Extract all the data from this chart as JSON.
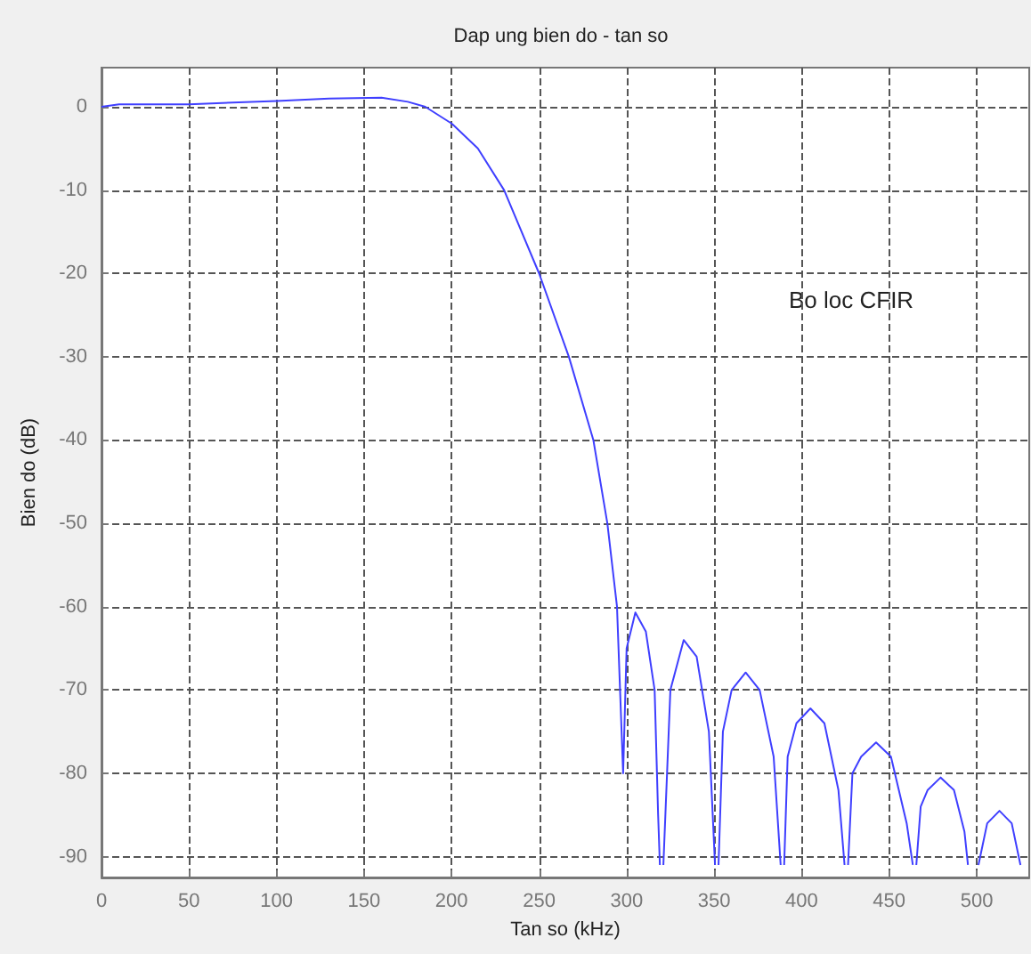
{
  "chart_data": {
    "type": "line",
    "title": "Dap ung bien do - tan so",
    "xlabel": "Tan so (kHz)",
    "ylabel": "Bien do (dB)",
    "annotations": [
      "Bo loc CFIR"
    ],
    "xlim": [
      0,
      530
    ],
    "ylim": [
      -92.5,
      4.7
    ],
    "xticks": [
      0,
      50,
      100,
      150,
      200,
      250,
      300,
      350,
      400,
      450,
      500
    ],
    "yticks": [
      0,
      -10,
      -20,
      -30,
      -40,
      -50,
      -60,
      -70,
      -80,
      -90
    ],
    "grid": true,
    "line_style": "solid",
    "series": [
      {
        "color": "#3f3fff",
        "x": [
          0,
          10,
          50,
          100,
          130,
          160,
          175,
          185,
          200,
          215,
          230,
          250,
          267,
          281,
          289,
          294.5,
          298,
          298.5,
          300,
          305,
          311,
          316,
          318,
          319,
          320,
          321,
          325,
          332.6,
          340,
          347,
          350.5,
          351.5,
          352.5,
          355,
          360,
          368,
          376,
          384,
          388,
          389,
          390,
          392,
          397,
          405,
          413,
          421,
          424.5,
          425.5,
          426.5,
          429,
          434,
          442.5,
          451,
          460,
          463.5,
          464.5,
          465.5,
          468,
          472,
          479.4,
          487,
          493,
          495,
          498,
          501,
          506,
          513,
          520,
          525
        ],
        "values": [
          0,
          0.3,
          0.3,
          0.7,
          1,
          1.1,
          0.6,
          0,
          -2,
          -5,
          -10,
          -20,
          -30,
          -40,
          -50,
          -60,
          -80,
          -80,
          -65,
          -60.7,
          -63,
          -70,
          -85,
          -91,
          null,
          -91,
          -70,
          -64,
          -66,
          -75,
          -91,
          null,
          -91,
          -75,
          -70,
          -67.9,
          -70,
          -78,
          -91,
          null,
          -91,
          -78,
          -74,
          -72.2,
          -74,
          -82,
          -91,
          null,
          -91,
          -80,
          -78,
          -76.3,
          -78,
          -86,
          -91,
          null,
          -91,
          -84,
          -82,
          -80.5,
          -82,
          -87,
          -91,
          null,
          -91,
          -86,
          -84.5,
          -86,
          -91
        ]
      }
    ]
  }
}
